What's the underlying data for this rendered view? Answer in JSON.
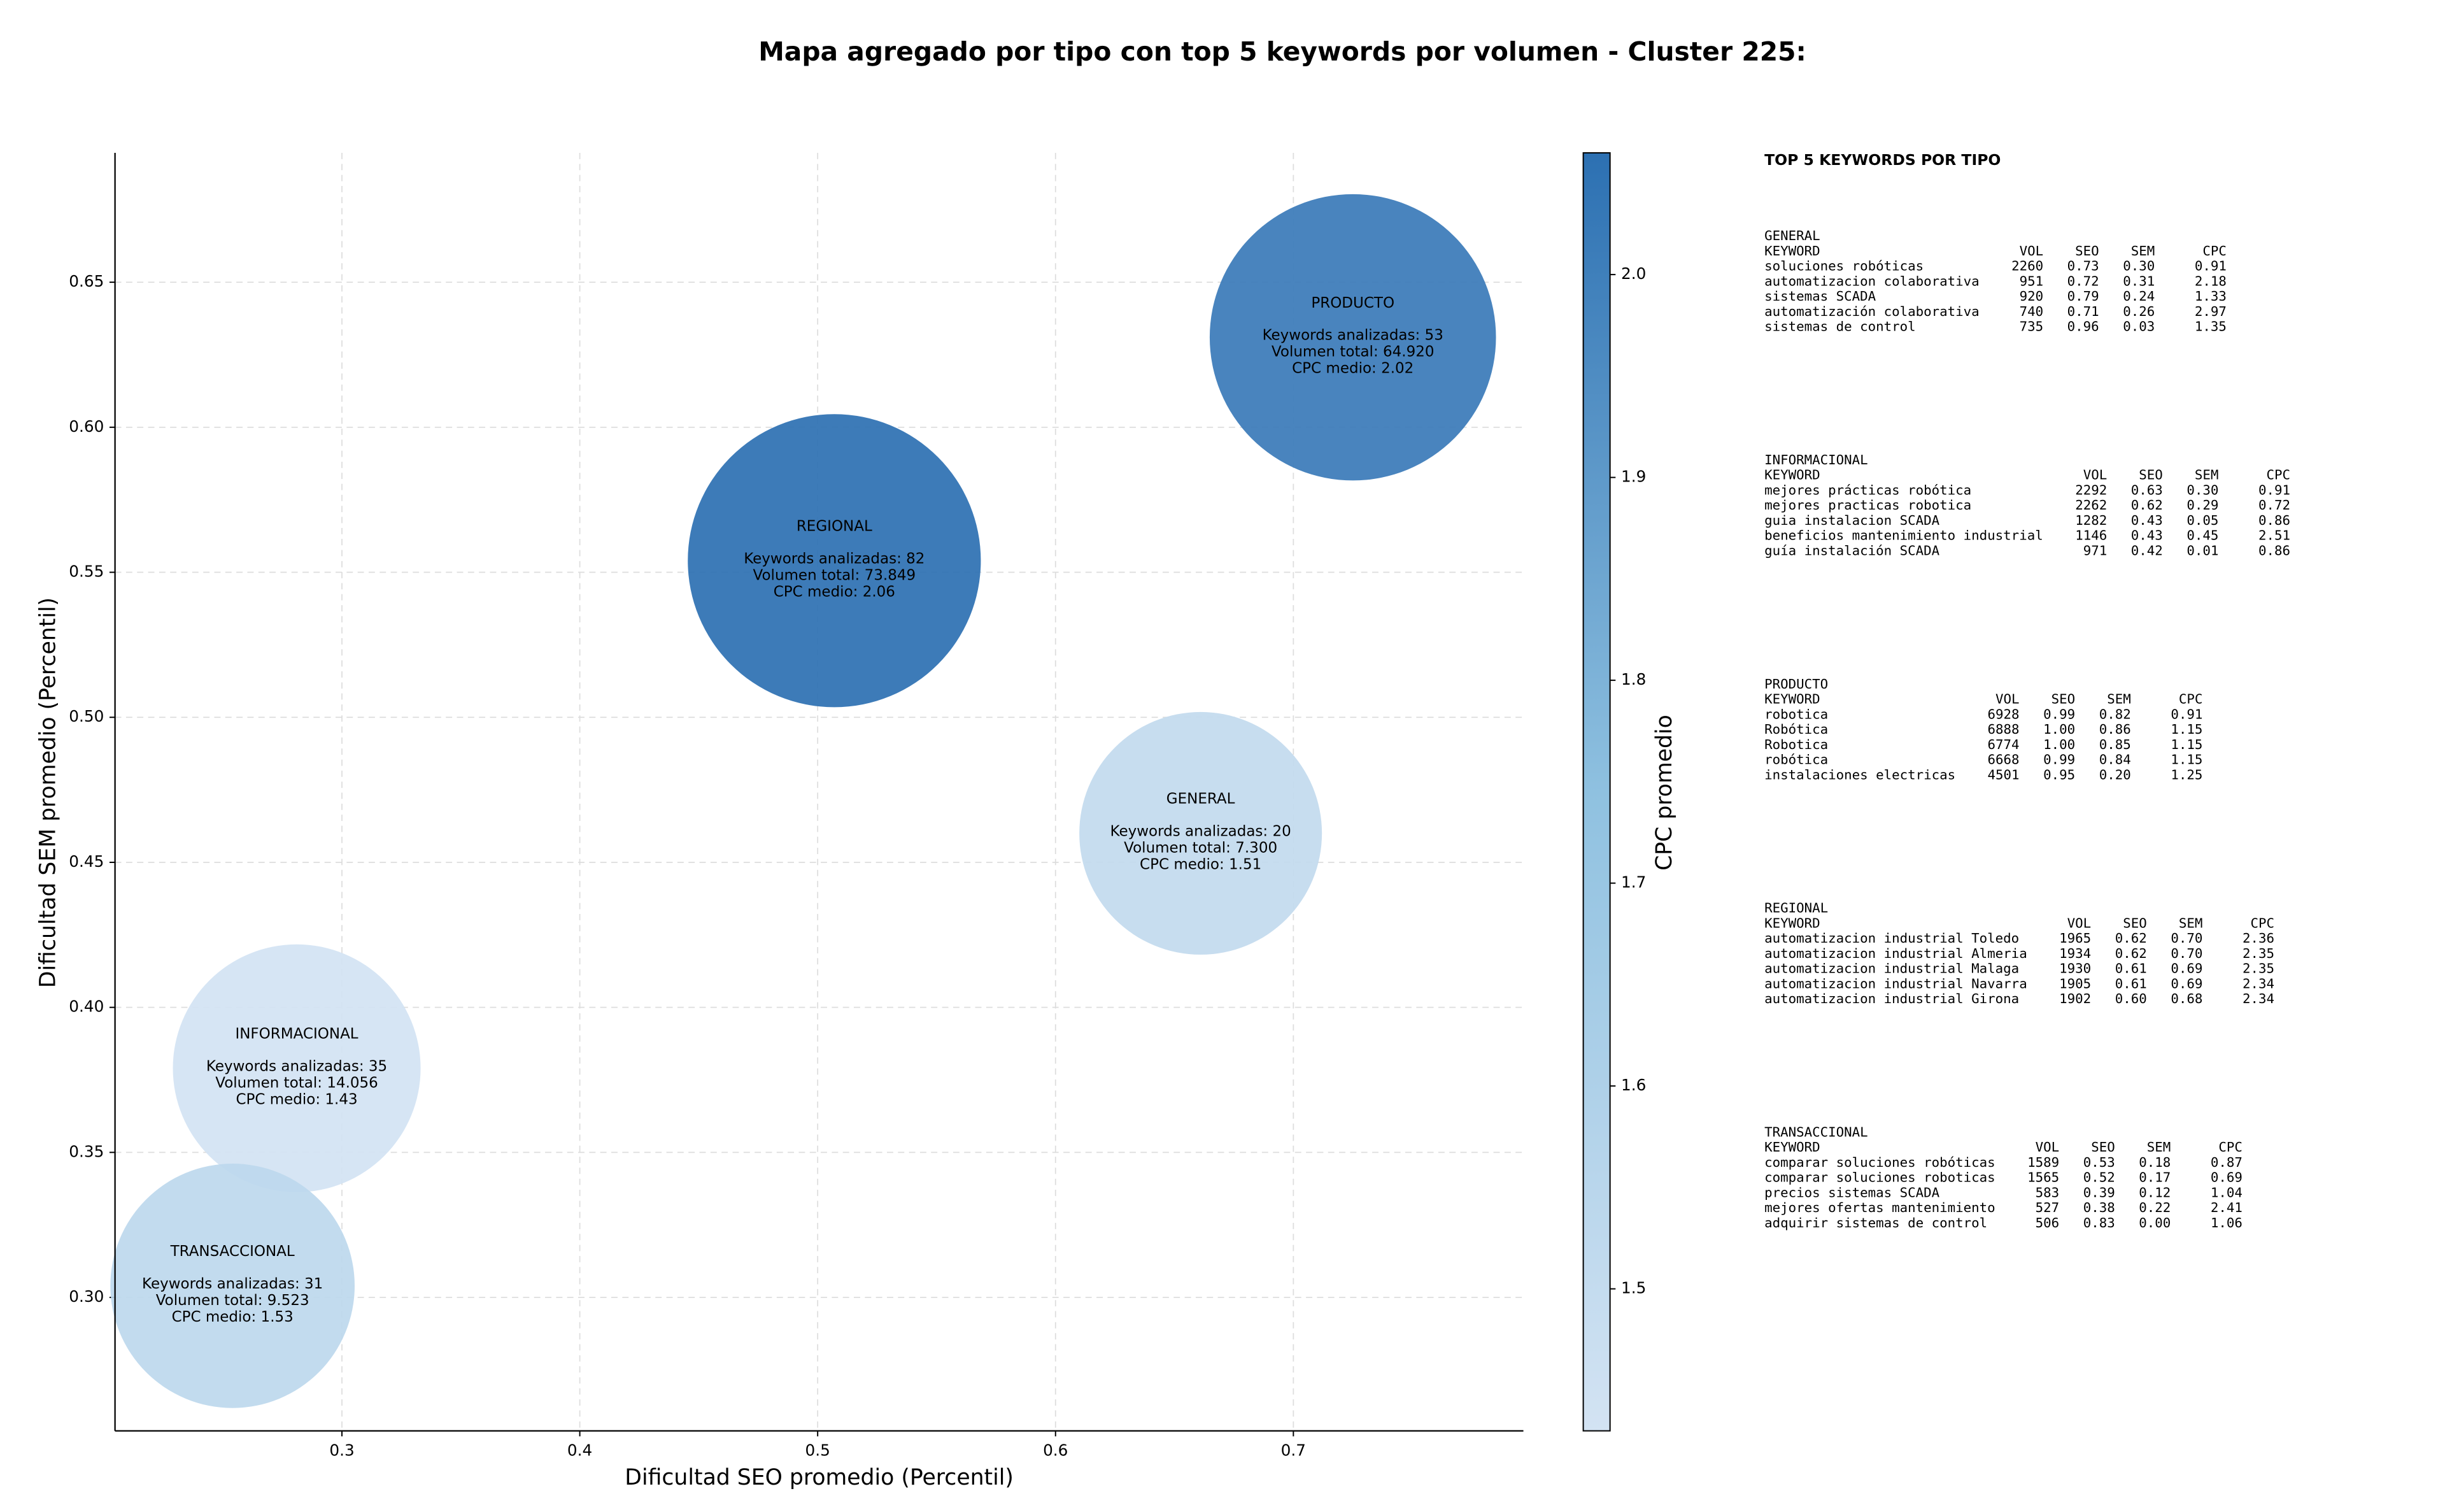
{
  "chart_data": {
    "type": "scatter",
    "title": "Mapa agregado por tipo con top 5 keywords por volumen - Cluster 225:",
    "xlabel": "Dificultad SEO promedio (Percentil)",
    "ylabel": "Dificultad SEM promedio (Percentil)",
    "colorbar_label": "CPC promedio",
    "names": [
      "REGIONAL",
      "PRODUCTO",
      "GENERAL",
      "INFORMACIONAL",
      "TRANSACCIONAL"
    ],
    "x": [
      0.507,
      0.725,
      0.661,
      0.281,
      0.254
    ],
    "y": [
      0.554,
      0.631,
      0.46,
      0.379,
      0.304
    ],
    "sizes": [
      73849,
      64920,
      7300,
      14056,
      9523
    ],
    "cpc": [
      2.06,
      2.02,
      1.51,
      1.43,
      1.53
    ],
    "annotations": [
      [
        "Keywords analizadas: 82",
        "Volumen total: 73.849",
        "CPC medio: 2.06"
      ],
      [
        "Keywords analizadas: 53",
        "Volumen total: 64.920",
        "CPC medio: 2.02"
      ],
      [
        "Keywords analizadas: 20",
        "Volumen total: 7.300",
        "CPC medio: 1.51"
      ],
      [
        "Keywords analizadas: 35",
        "Volumen total: 14.056",
        "CPC medio: 1.43"
      ],
      [
        "Keywords analizadas: 31",
        "Volumen total: 9.523",
        "CPC medio: 1.53"
      ]
    ],
    "xlim": [
      0.2046,
      0.7967
    ],
    "ylim": [
      0.254,
      0.6946
    ],
    "xticks": [
      0.3,
      0.4,
      0.5,
      0.6,
      0.7
    ],
    "yticks": [
      {
        "value": 0.3,
        "label": "0.30"
      },
      {
        "value": 0.35,
        "label": "0.35"
      },
      {
        "value": 0.4,
        "label": "0.40"
      },
      {
        "value": 0.45,
        "label": "0.45"
      },
      {
        "value": 0.5,
        "label": "0.50"
      },
      {
        "value": 0.55,
        "label": "0.55"
      },
      {
        "value": 0.6,
        "label": "0.60"
      },
      {
        "value": 0.65,
        "label": "0.65"
      }
    ],
    "clim": [
      1.43,
      2.06
    ],
    "cticks": [
      1.5,
      1.6,
      1.7,
      1.8,
      1.9,
      {
        "value": 2.0,
        "label": "2.0"
      }
    ],
    "colormap": [
      "#d3e3f3",
      "#8fc1e0",
      "#2c70b2"
    ],
    "grid": true
  },
  "keyword_tables": {
    "title": "TOP 5 KEYWORDS POR TIPO",
    "columns": [
      "KEYWORD",
      "VOL",
      "SEO",
      "SEM",
      "CPC"
    ],
    "sections": [
      {
        "name": "GENERAL",
        "rows": [
          [
            "soluciones robóticas",
            "2260",
            "0.73",
            "0.30",
            "0.91"
          ],
          [
            "automatizacion colaborativa",
            "951",
            "0.72",
            "0.31",
            "2.18"
          ],
          [
            "sistemas SCADA",
            "920",
            "0.79",
            "0.24",
            "1.33"
          ],
          [
            "automatización colaborativa",
            "740",
            "0.71",
            "0.26",
            "2.97"
          ],
          [
            "sistemas de control",
            "735",
            "0.96",
            "0.03",
            "1.35"
          ]
        ]
      },
      {
        "name": "INFORMACIONAL",
        "rows": [
          [
            "mejores prácticas robótica",
            "2292",
            "0.63",
            "0.30",
            "0.91"
          ],
          [
            "mejores practicas robotica",
            "2262",
            "0.62",
            "0.29",
            "0.72"
          ],
          [
            "guia instalacion SCADA",
            "1282",
            "0.43",
            "0.05",
            "0.86"
          ],
          [
            "beneficios mantenimiento industrial",
            "1146",
            "0.43",
            "0.45",
            "2.51"
          ],
          [
            "guía instalación SCADA",
            "971",
            "0.42",
            "0.01",
            "0.86"
          ]
        ]
      },
      {
        "name": "PRODUCTO",
        "rows": [
          [
            "robotica",
            "6928",
            "0.99",
            "0.82",
            "0.91"
          ],
          [
            "Robótica",
            "6888",
            "1.00",
            "0.86",
            "1.15"
          ],
          [
            "Robotica",
            "6774",
            "1.00",
            "0.85",
            "1.15"
          ],
          [
            "robótica",
            "6668",
            "0.99",
            "0.84",
            "1.15"
          ],
          [
            "instalaciones electricas",
            "4501",
            "0.95",
            "0.20",
            "1.25"
          ]
        ]
      },
      {
        "name": "REGIONAL",
        "rows": [
          [
            "automatizacion industrial Toledo",
            "1965",
            "0.62",
            "0.70",
            "2.36"
          ],
          [
            "automatizacion industrial Almeria",
            "1934",
            "0.62",
            "0.70",
            "2.35"
          ],
          [
            "automatizacion industrial Malaga",
            "1930",
            "0.61",
            "0.69",
            "2.35"
          ],
          [
            "automatizacion industrial Navarra",
            "1905",
            "0.61",
            "0.69",
            "2.34"
          ],
          [
            "automatizacion industrial Girona",
            "1902",
            "0.60",
            "0.68",
            "2.34"
          ]
        ]
      },
      {
        "name": "TRANSACCIONAL",
        "rows": [
          [
            "comparar soluciones robóticas",
            "1589",
            "0.53",
            "0.18",
            "0.87"
          ],
          [
            "comparar soluciones roboticas",
            "1565",
            "0.52",
            "0.17",
            "0.69"
          ],
          [
            "precios sistemas SCADA",
            "583",
            "0.39",
            "0.12",
            "1.04"
          ],
          [
            "mejores ofertas mantenimiento",
            "527",
            "0.38",
            "0.22",
            "2.41"
          ],
          [
            "adquirir sistemas de control",
            "506",
            "0.83",
            "0.00",
            "1.06"
          ]
        ]
      }
    ]
  }
}
